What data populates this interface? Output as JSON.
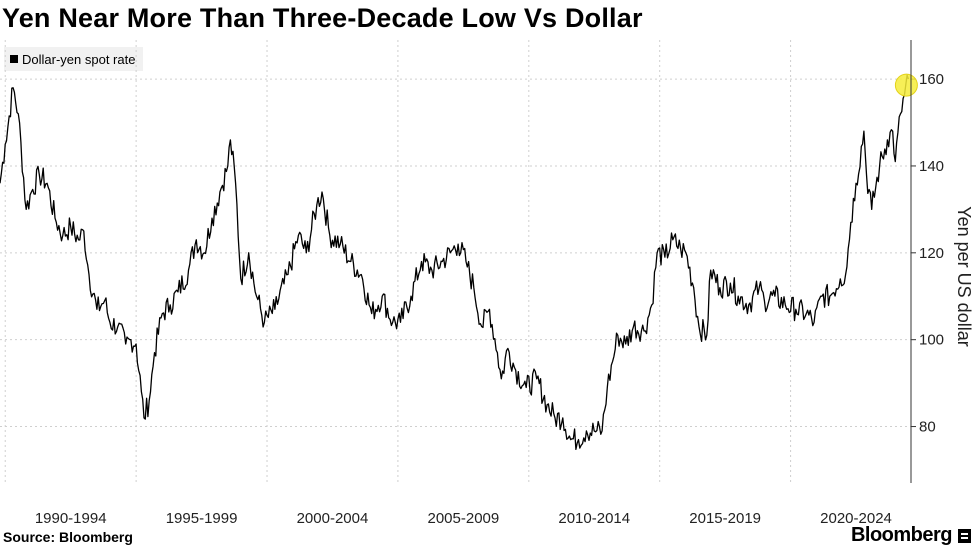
{
  "title": "Yen Near More Than Three-Decade Low Vs Dollar",
  "legend_label": "Dollar-yen spot rate",
  "source": "Source: Bloomberg",
  "brand": "Bloomberg",
  "chart_data": {
    "type": "line",
    "title": "Yen Near More Than Three-Decade Low Vs Dollar",
    "xlabel": "",
    "ylabel": "Yen per US dollar",
    "x_categories": [
      "1990-1994",
      "1995-1999",
      "2000-2004",
      "2005-2009",
      "2010-2014",
      "2015-2019",
      "2020-2024"
    ],
    "yticks": [
      80,
      100,
      120,
      140,
      160
    ],
    "ylim": [
      67,
      169
    ],
    "xlim": [
      1989.8,
      2024.6
    ],
    "grid": true,
    "legend": "top-left",
    "colors": {
      "line": "#000000",
      "highlight": "#f6ec3a"
    },
    "series": [
      {
        "name": "Dollar-yen spot rate",
        "x": [
          1989.8,
          1990.0,
          1990.3,
          1990.5,
          1990.8,
          1991.0,
          1991.3,
          1991.6,
          1991.9,
          1992.2,
          1992.5,
          1992.8,
          1993.0,
          1993.2,
          1993.5,
          1993.8,
          1994.0,
          1994.3,
          1994.6,
          1994.8,
          1995.0,
          1995.2,
          1995.3,
          1995.5,
          1995.7,
          1996.0,
          1996.3,
          1996.6,
          1997.0,
          1997.3,
          1997.6,
          1997.9,
          1998.2,
          1998.5,
          1998.6,
          1998.8,
          1999.0,
          1999.3,
          1999.6,
          1999.9,
          2000.3,
          2000.8,
          2001.2,
          2001.5,
          2001.9,
          2002.1,
          2002.4,
          2002.8,
          2003.2,
          2003.6,
          2004.0,
          2004.4,
          2004.8,
          2005.1,
          2005.5,
          2005.9,
          2006.3,
          2006.7,
          2007.0,
          2007.3,
          2007.6,
          2007.9,
          2008.2,
          2008.5,
          2008.8,
          2008.95,
          2009.2,
          2009.5,
          2009.9,
          2010.3,
          2010.7,
          2011.0,
          2011.3,
          2011.6,
          2011.9,
          2012.2,
          2012.5,
          2012.8,
          2013.0,
          2013.2,
          2013.4,
          2013.7,
          2014.0,
          2014.4,
          2014.7,
          2014.9,
          2015.2,
          2015.5,
          2015.8,
          2016.0,
          2016.3,
          2016.5,
          2016.8,
          2016.95,
          2017.3,
          2017.7,
          2018.0,
          2018.4,
          2018.8,
          2019.0,
          2019.4,
          2019.8,
          2020.2,
          2020.6,
          2020.9,
          2021.2,
          2021.5,
          2021.9,
          2022.1,
          2022.3,
          2022.5,
          2022.8,
          2022.9,
          2023.1,
          2023.4,
          2023.7,
          2023.9,
          2024.0,
          2024.2,
          2024.5
        ],
        "values": [
          136,
          145,
          158,
          152,
          130,
          134,
          138,
          136,
          128,
          124,
          126,
          123,
          125,
          115,
          107,
          109,
          104,
          103,
          99,
          100,
          99,
          88,
          82,
          86,
          97,
          106,
          108,
          111,
          116,
          123,
          120,
          128,
          134,
          140,
          146,
          136,
          114,
          120,
          110,
          104,
          107,
          115,
          124,
          120,
          131,
          134,
          124,
          122,
          118,
          115,
          106,
          110,
          104,
          104,
          110,
          118,
          116,
          118,
          120,
          122,
          118,
          112,
          103,
          107,
          97,
          91,
          98,
          93,
          89,
          91,
          85,
          82,
          82,
          77,
          77,
          79,
          79,
          79,
          89,
          95,
          101,
          99,
          103,
          102,
          108,
          120,
          119,
          123,
          121,
          120,
          112,
          103,
          101,
          116,
          112,
          113,
          110,
          108,
          112,
          109,
          110,
          108,
          107,
          106,
          104,
          110,
          110,
          114,
          115,
          127,
          136,
          148,
          138,
          130,
          140,
          146,
          148,
          141,
          152,
          160
        ]
      }
    ],
    "highlight_value": 160
  }
}
